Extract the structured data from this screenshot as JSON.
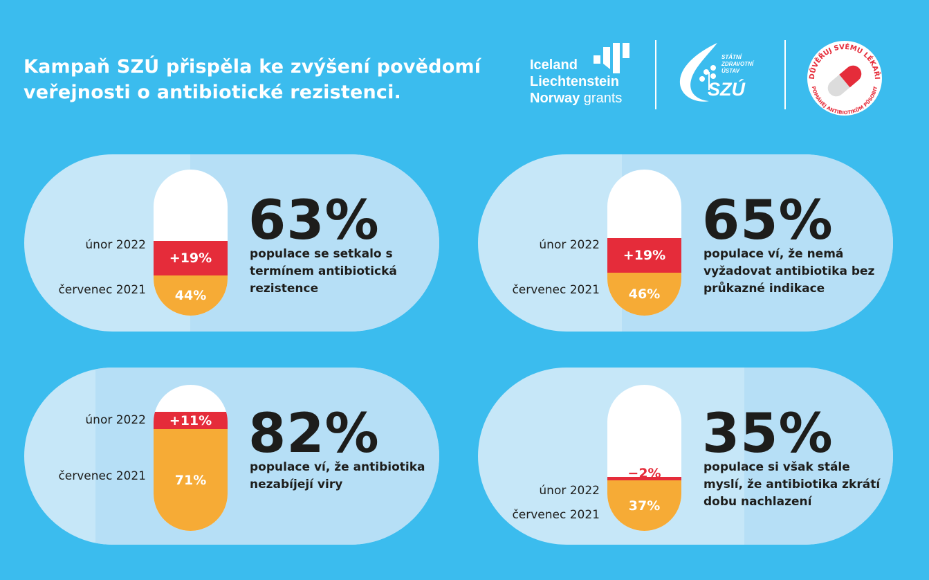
{
  "headline": "Kampaň SZÚ přispěla ke zvýšení povědomí veřejnosti o antibiotické rezistenci.",
  "logos": {
    "eea": {
      "line1": "Iceland",
      "line2": "Liechtenstein",
      "line3_bold": "Norway",
      "line3_light": " grants"
    },
    "szu": {
      "small": "STÁTNÍ\nZDRAVOTNÍ\nÚSTAV",
      "name": "SZÚ"
    },
    "badge": {
      "top": "DŮVĚŘUJ SVÉMU LÉKAŘI",
      "bottom": "POMÁHEJ ANTIBIOTIKŮM PŮSOBIT"
    }
  },
  "colors": {
    "background": "#3bbcee",
    "red": "#e52c3a",
    "orange": "#f6ab36",
    "pill_light": "#c6e7f8",
    "pill_mid": "#b6dff6"
  },
  "stats": [
    {
      "label_2022": "únor 2022",
      "label_2021": "červenec 2021",
      "increase": "+19%",
      "base": "44%",
      "base_value": 44,
      "change_value": 19,
      "total": "63%",
      "desc": "populace se setkalo s termínem antibiotická rezistence"
    },
    {
      "label_2022": "únor 2022",
      "label_2021": "červenec 2021",
      "increase": "+19%",
      "base": "46%",
      "base_value": 46,
      "change_value": 19,
      "total": "65%",
      "desc": "populace ví, že nemá vyžadovat antibiotika bez průkazné indikace"
    },
    {
      "label_2022": "únor 2022",
      "label_2021": "červenec 2021",
      "increase": "+11%",
      "base": "71%",
      "base_value": 71,
      "change_value": 11,
      "total": "82%",
      "desc": "populace ví, že antibiotika nezabíjejí viry"
    },
    {
      "label_2022": "únor 2022",
      "label_2021": "červenec 2021",
      "increase": "−2%",
      "base": "37%",
      "base_value": 37,
      "change_value": -2,
      "total": "35%",
      "desc": "populace si však stále myslí, že antibiotika zkrátí dobu nachlazení"
    }
  ]
}
